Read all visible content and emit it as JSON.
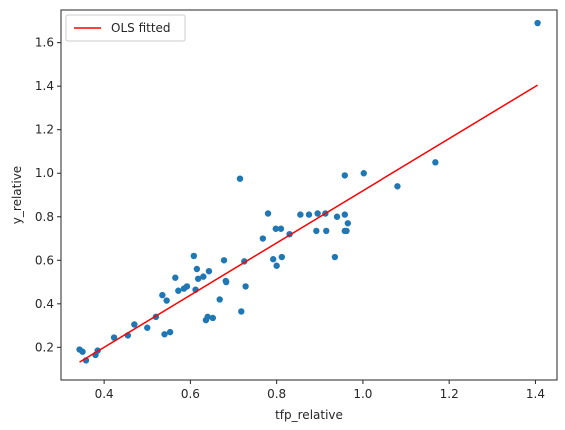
{
  "chart_data": {
    "type": "scatter",
    "xlabel": "tfp_relative",
    "ylabel": "y_relative",
    "xlim": [
      0.3,
      1.45
    ],
    "ylim": [
      0.05,
      1.75
    ],
    "xticks": [
      0.4,
      0.6,
      0.8,
      1.0,
      1.2,
      1.4
    ],
    "yticks": [
      0.2,
      0.4,
      0.6,
      0.8,
      1.0,
      1.2,
      1.4,
      1.6
    ],
    "xtick_labels": [
      "0.4",
      "0.6",
      "0.8",
      "1.0",
      "1.2",
      "1.4"
    ],
    "ytick_labels": [
      "0.2",
      "0.4",
      "0.6",
      "0.8",
      "1.0",
      "1.2",
      "1.4",
      "1.6"
    ],
    "grid": false,
    "legend_position": "top-left",
    "series": [
      {
        "type": "scatter",
        "color": "#1f77b4",
        "points": [
          [
            0.343,
            0.19
          ],
          [
            0.35,
            0.18
          ],
          [
            0.358,
            0.14
          ],
          [
            0.38,
            0.165
          ],
          [
            0.385,
            0.185
          ],
          [
            0.423,
            0.245
          ],
          [
            0.455,
            0.255
          ],
          [
            0.47,
            0.305
          ],
          [
            0.5,
            0.29
          ],
          [
            0.52,
            0.34
          ],
          [
            0.535,
            0.44
          ],
          [
            0.54,
            0.26
          ],
          [
            0.545,
            0.415
          ],
          [
            0.553,
            0.27
          ],
          [
            0.565,
            0.52
          ],
          [
            0.572,
            0.46
          ],
          [
            0.585,
            0.47
          ],
          [
            0.592,
            0.48
          ],
          [
            0.608,
            0.62
          ],
          [
            0.612,
            0.465
          ],
          [
            0.615,
            0.56
          ],
          [
            0.618,
            0.515
          ],
          [
            0.63,
            0.525
          ],
          [
            0.636,
            0.325
          ],
          [
            0.64,
            0.34
          ],
          [
            0.643,
            0.55
          ],
          [
            0.652,
            0.335
          ],
          [
            0.668,
            0.42
          ],
          [
            0.678,
            0.6
          ],
          [
            0.682,
            0.505
          ],
          [
            0.683,
            0.5
          ],
          [
            0.715,
            0.975
          ],
          [
            0.718,
            0.365
          ],
          [
            0.725,
            0.595
          ],
          [
            0.728,
            0.48
          ],
          [
            0.768,
            0.7
          ],
          [
            0.78,
            0.815
          ],
          [
            0.792,
            0.605
          ],
          [
            0.798,
            0.745
          ],
          [
            0.8,
            0.575
          ],
          [
            0.81,
            0.745
          ],
          [
            0.812,
            0.615
          ],
          [
            0.83,
            0.72
          ],
          [
            0.855,
            0.81
          ],
          [
            0.875,
            0.81
          ],
          [
            0.892,
            0.735
          ],
          [
            0.895,
            0.815
          ],
          [
            0.913,
            0.815
          ],
          [
            0.915,
            0.735
          ],
          [
            0.935,
            0.615
          ],
          [
            0.94,
            0.8
          ],
          [
            0.958,
            0.99
          ],
          [
            0.958,
            0.81
          ],
          [
            0.958,
            0.735
          ],
          [
            0.962,
            0.735
          ],
          [
            0.965,
            0.77
          ],
          [
            1.002,
            1.0
          ],
          [
            1.08,
            0.94
          ],
          [
            1.168,
            1.05
          ],
          [
            1.405,
            1.69
          ]
        ]
      },
      {
        "type": "line",
        "name": "OLS fitted",
        "color": "#ff0000",
        "points": [
          [
            0.343,
            0.132
          ],
          [
            1.405,
            1.405
          ]
        ]
      }
    ]
  }
}
